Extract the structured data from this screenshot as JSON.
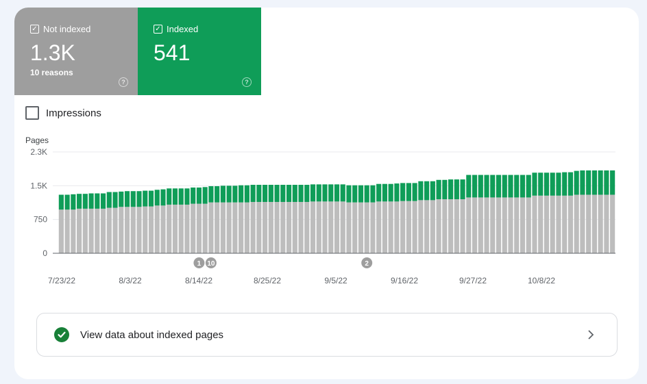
{
  "tiles": {
    "not_indexed": {
      "label": "Not indexed",
      "value": "1.3K",
      "sub": "10 reasons",
      "color": "#9e9e9e"
    },
    "indexed": {
      "label": "Indexed",
      "value": "541",
      "color": "#0f9d58"
    }
  },
  "impressions": {
    "label": "Impressions",
    "checked": false
  },
  "chart_data": {
    "type": "bar",
    "stacked": true,
    "ylabel": "Pages",
    "y_ticks": [
      "2.3K",
      "1.5K",
      "750",
      "0"
    ],
    "ylim": [
      0,
      2250
    ],
    "x_ticks": [
      "7/23/22",
      "8/3/22",
      "8/14/22",
      "8/25/22",
      "9/5/22",
      "9/16/22",
      "9/27/22",
      "10/8/22"
    ],
    "series": [
      {
        "name": "Not indexed",
        "color": "#bdbdbd",
        "values": [
          970,
          970,
          970,
          990,
          990,
          990,
          990,
          990,
          1010,
          1010,
          1030,
          1030,
          1030,
          1030,
          1040,
          1040,
          1060,
          1060,
          1080,
          1080,
          1080,
          1080,
          1100,
          1100,
          1100,
          1130,
          1130,
          1130,
          1130,
          1130,
          1130,
          1130,
          1140,
          1140,
          1140,
          1140,
          1140,
          1140,
          1140,
          1140,
          1140,
          1140,
          1150,
          1150,
          1150,
          1150,
          1150,
          1150,
          1130,
          1130,
          1130,
          1130,
          1130,
          1150,
          1150,
          1150,
          1150,
          1160,
          1160,
          1160,
          1180,
          1180,
          1180,
          1200,
          1200,
          1200,
          1200,
          1200,
          1240,
          1240,
          1240,
          1240,
          1240,
          1240,
          1240,
          1240,
          1240,
          1240,
          1240,
          1280,
          1280,
          1280,
          1280,
          1280,
          1280,
          1280,
          1300,
          1300,
          1300,
          1300,
          1300,
          1300,
          1300
        ]
      },
      {
        "name": "Indexed",
        "color": "#0f9d58",
        "values": [
          330,
          330,
          340,
          330,
          330,
          340,
          340,
          340,
          350,
          350,
          340,
          350,
          350,
          350,
          350,
          350,
          350,
          360,
          360,
          360,
          360,
          360,
          360,
          360,
          370,
          360,
          360,
          370,
          370,
          370,
          380,
          380,
          380,
          380,
          380,
          380,
          380,
          380,
          380,
          380,
          380,
          380,
          380,
          380,
          380,
          380,
          380,
          380,
          380,
          380,
          380,
          380,
          380,
          390,
          390,
          390,
          400,
          400,
          400,
          400,
          420,
          420,
          420,
          430,
          430,
          440,
          440,
          440,
          500,
          500,
          500,
          500,
          500,
          500,
          500,
          500,
          500,
          500,
          500,
          510,
          510,
          510,
          510,
          510,
          520,
          520,
          530,
          540,
          540,
          540,
          540,
          540,
          540
        ]
      }
    ],
    "annotations": [
      {
        "label": "1",
        "x_index": 23
      },
      {
        "label": "10",
        "x_index": 25
      },
      {
        "label": "2",
        "x_index": 51
      }
    ]
  },
  "footer_link": {
    "label": "View data about indexed pages"
  }
}
